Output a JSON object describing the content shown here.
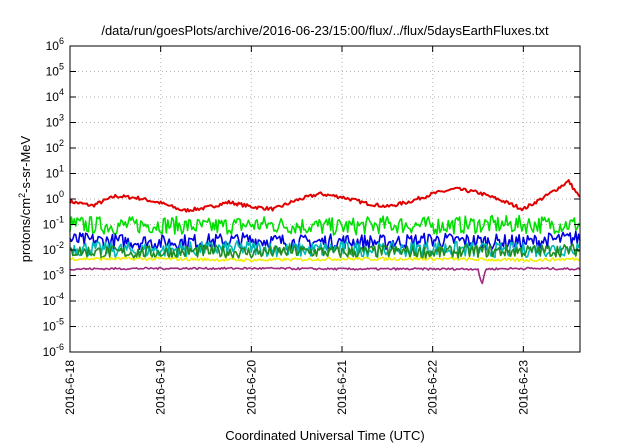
{
  "chart_data": {
    "type": "line",
    "title": "/data/run/goesPlots/archive/2016-06-23/15:00/flux/../flux/5daysEarthFluxes.txt",
    "xlabel": "Coordinated Universal Time (UTC)",
    "ylabel": {
      "pre": "protons/cm",
      "sup": "2",
      "post": "-s-sr-MeV"
    },
    "yscale": "log",
    "ylim": [
      1e-06,
      1000000.0
    ],
    "xlim": [
      "2016-06-18 00:00",
      "2016-06-23 15:00"
    ],
    "grid": true,
    "legend": false,
    "yticks": [
      {
        "value": 1000000.0,
        "base": "10",
        "exp": "6"
      },
      {
        "value": 100000.0,
        "base": "10",
        "exp": "5"
      },
      {
        "value": 10000.0,
        "base": "10",
        "exp": "4"
      },
      {
        "value": 1000.0,
        "base": "10",
        "exp": "3"
      },
      {
        "value": 100.0,
        "base": "10",
        "exp": "2"
      },
      {
        "value": 10.0,
        "base": "10",
        "exp": "1"
      },
      {
        "value": 1.0,
        "base": "10",
        "exp": "0"
      },
      {
        "value": 0.1,
        "base": "10",
        "exp": "-1"
      },
      {
        "value": 0.01,
        "base": "10",
        "exp": "-2"
      },
      {
        "value": 0.001,
        "base": "10",
        "exp": "-3"
      },
      {
        "value": 0.0001,
        "base": "10",
        "exp": "-4"
      },
      {
        "value": 1e-05,
        "base": "10",
        "exp": "-5"
      },
      {
        "value": 1e-06,
        "base": "10",
        "exp": "-6"
      }
    ],
    "xticks": [
      {
        "date": "2016-06-18",
        "label": "2016-6-18"
      },
      {
        "date": "2016-06-19",
        "label": "2016-6-19"
      },
      {
        "date": "2016-06-20",
        "label": "2016-6-20"
      },
      {
        "date": "2016-06-21",
        "label": "2016-6-21"
      },
      {
        "date": "2016-06-22",
        "label": "2016-6-22"
      },
      {
        "date": "2016-06-23",
        "label": "2016-6-23"
      }
    ],
    "series": [
      {
        "color": "#e00000",
        "noise": 0.07,
        "x": [
          "2016-06-18 00:00",
          "2016-06-18 06:00",
          "2016-06-18 12:00",
          "2016-06-18 18:00",
          "2016-06-19 00:00",
          "2016-06-19 06:00",
          "2016-06-19 12:00",
          "2016-06-19 18:00",
          "2016-06-20 00:00",
          "2016-06-20 06:00",
          "2016-06-20 12:00",
          "2016-06-20 18:00",
          "2016-06-21 00:00",
          "2016-06-21 06:00",
          "2016-06-21 12:00",
          "2016-06-21 18:00",
          "2016-06-22 00:00",
          "2016-06-22 06:00",
          "2016-06-22 12:00",
          "2016-06-22 18:00",
          "2016-06-23 00:00",
          "2016-06-23 06:00",
          "2016-06-23 12:00",
          "2016-06-23 15:00"
        ],
        "y": [
          0.8,
          0.55,
          1.3,
          1.1,
          0.7,
          0.35,
          0.45,
          0.75,
          0.5,
          0.4,
          0.9,
          1.6,
          1.2,
          0.7,
          0.5,
          0.8,
          1.6,
          2.5,
          1.8,
          0.9,
          0.4,
          1.3,
          5.0,
          1.1
        ]
      },
      {
        "color": "#00e000",
        "noise": 0.35,
        "x": [
          "2016-06-18 00:00",
          "2016-06-18 12:00",
          "2016-06-19 00:00",
          "2016-06-19 12:00",
          "2016-06-20 00:00",
          "2016-06-20 12:00",
          "2016-06-21 00:00",
          "2016-06-21 12:00",
          "2016-06-22 00:00",
          "2016-06-22 12:00",
          "2016-06-23 00:00",
          "2016-06-23 15:00"
        ],
        "y": [
          0.1,
          0.09,
          0.1,
          0.08,
          0.1,
          0.09,
          0.08,
          0.1,
          0.09,
          0.1,
          0.1,
          0.1
        ]
      },
      {
        "color": "#0000e0",
        "noise": 0.3,
        "x": [
          "2016-06-18 00:00",
          "2016-06-18 12:00",
          "2016-06-19 00:00",
          "2016-06-19 12:00",
          "2016-06-20 00:00",
          "2016-06-20 12:00",
          "2016-06-21 00:00",
          "2016-06-21 12:00",
          "2016-06-22 00:00",
          "2016-06-22 12:00",
          "2016-06-23 00:00",
          "2016-06-23 15:00"
        ],
        "y": [
          0.025,
          0.022,
          0.02,
          0.022,
          0.025,
          0.02,
          0.022,
          0.02,
          0.025,
          0.022,
          0.02,
          0.03
        ]
      },
      {
        "color": "#00b8b8",
        "noise": 0.3,
        "x": [
          "2016-06-18 00:00",
          "2016-06-18 12:00",
          "2016-06-19 00:00",
          "2016-06-19 12:00",
          "2016-06-20 00:00",
          "2016-06-20 12:00",
          "2016-06-21 00:00",
          "2016-06-21 12:00",
          "2016-06-22 00:00",
          "2016-06-22 12:00",
          "2016-06-23 00:00",
          "2016-06-23 15:00"
        ],
        "y": [
          0.012,
          0.01,
          0.01,
          0.011,
          0.012,
          0.01,
          0.011,
          0.01,
          0.012,
          0.01,
          0.01,
          0.012
        ]
      },
      {
        "color": "#1e8c1e",
        "noise": 0.25,
        "x": [
          "2016-06-18 00:00",
          "2016-06-18 12:00",
          "2016-06-19 00:00",
          "2016-06-19 12:00",
          "2016-06-20 00:00",
          "2016-06-20 12:00",
          "2016-06-21 00:00",
          "2016-06-21 12:00",
          "2016-06-22 00:00",
          "2016-06-22 12:00",
          "2016-06-23 00:00",
          "2016-06-23 15:00"
        ],
        "y": [
          0.009,
          0.008,
          0.008,
          0.009,
          0.008,
          0.009,
          0.008,
          0.009,
          0.008,
          0.009,
          0.009,
          0.01
        ]
      },
      {
        "color": "#f0f000",
        "noise": 0.06,
        "x": [
          "2016-06-18 00:00",
          "2016-06-19 00:00",
          "2016-06-20 00:00",
          "2016-06-21 00:00",
          "2016-06-22 00:00",
          "2016-06-23 00:00",
          "2016-06-23 15:00"
        ],
        "y": [
          0.0045,
          0.0045,
          0.004,
          0.0045,
          0.0045,
          0.004,
          0.0045
        ]
      },
      {
        "color": "#a02880",
        "noise": 0.04,
        "x": [
          "2016-06-18 00:00",
          "2016-06-19 00:00",
          "2016-06-20 00:00",
          "2016-06-21 00:00",
          "2016-06-22 00:00",
          "2016-06-22 12:00",
          "2016-06-22 13:00",
          "2016-06-22 14:00",
          "2016-06-23 00:00",
          "2016-06-23 15:00"
        ],
        "y": [
          0.0018,
          0.0019,
          0.0019,
          0.0018,
          0.0018,
          0.0018,
          0.0004,
          0.0018,
          0.0019,
          0.0018
        ]
      }
    ]
  }
}
